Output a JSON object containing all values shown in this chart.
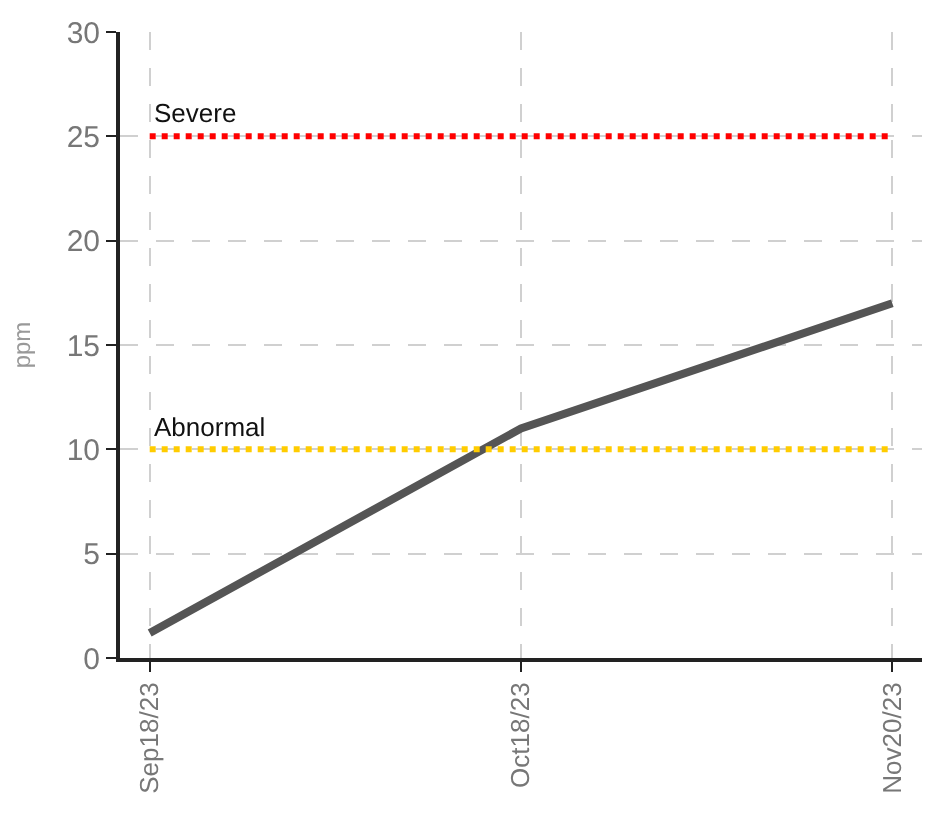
{
  "chart_data": {
    "type": "line",
    "ylabel": "ppm",
    "categories": [
      "Sep18/23",
      "Oct18/23",
      "Nov20/23"
    ],
    "values": [
      1.2,
      11,
      17
    ],
    "color": "#555555",
    "ylim": [
      0,
      30
    ],
    "yticks": [
      0,
      5,
      10,
      15,
      20,
      25,
      30
    ],
    "grid": true,
    "marker": "none",
    "line_style": "solid",
    "ref_lines": [
      {
        "axis": "y",
        "value": 25,
        "label": "Severe",
        "color": "#ff0000",
        "line_style": "dotted"
      },
      {
        "axis": "y",
        "value": 10,
        "label": "Abnormal",
        "color": "#ffcc00",
        "line_style": "dotted"
      }
    ]
  }
}
